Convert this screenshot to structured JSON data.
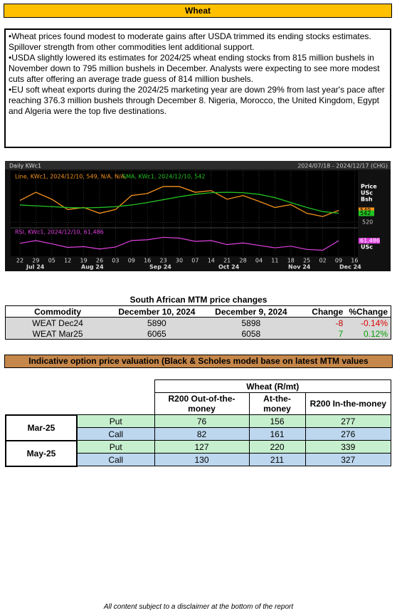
{
  "header": {
    "title": "Wheat"
  },
  "commentary": [
    "•Wheat prices found modest to moderate gains after USDA trimmed its ending stocks estimates. Spillover strength from other commodities lent additional support.",
    "•USDA slightly lowered its estimates for 2024/25 wheat ending stocks from 815 million bushels in November down to 795 million bushels in December. Analysts were expecting to see more modest cuts after offering an average trade guess of 814 million bushels.",
    "•EU soft wheat exports during the 2024/25 marketing year are down 29% from last year's pace after reaching 376.3 million bushels through December 8. Nigeria, Morocco, the United Kingdom, Egypt and Algeria were the top five destinations."
  ],
  "chart_data": {
    "type": "line",
    "title": "Daily KWc1",
    "date_range": "2024/07/18 - 2024/12/17 (CHG)",
    "categories": [
      "22",
      "29",
      "05",
      "12",
      "19",
      "26",
      "03",
      "09",
      "16",
      "23",
      "30",
      "07",
      "14",
      "21",
      "28",
      "04",
      "11",
      "18",
      "25",
      "02",
      "09",
      "16"
    ],
    "months": [
      "Jul 24",
      "Aug 24",
      "Sep 24",
      "Oct 24",
      "Nov 24",
      "Dec 24"
    ],
    "series": [
      {
        "name": "Line, KWc1, 2024/12/10, 549, N/A, N/A,",
        "color": "#f7941d",
        "values": [
          573,
          593,
          576,
          551,
          556,
          542,
          551,
          585,
          590,
          607,
          607,
          593,
          597,
          576,
          585,
          571,
          556,
          563,
          542,
          534,
          549,
          null
        ]
      },
      {
        "name": "SMA, KWc1, 2024/12/10, 542",
        "color": "#22c322",
        "values": [
          562,
          560,
          558,
          556,
          555,
          556,
          558,
          562,
          568,
          575,
          582,
          588,
          592,
          593,
          592,
          588,
          580,
          568,
          556,
          546,
          542,
          null
        ]
      }
    ],
    "y_label": [
      "Price",
      "USc",
      "Bsh"
    ],
    "ylim": [
      510,
      645
    ],
    "yticks": [
      520
    ],
    "last_tags": [
      549,
      542
    ],
    "rsi": {
      "name": "RSI, KWc1, 2024/12/10, 61,486",
      "color": "#e040e0",
      "values": [
        55,
        62,
        54,
        45,
        47,
        41,
        46,
        62,
        64,
        70,
        68,
        60,
        62,
        52,
        56,
        50,
        44,
        48,
        40,
        38,
        61.486,
        null
      ],
      "ylim": [
        30,
        90
      ],
      "tag": {
        "value": 61.486,
        "label": "61,486"
      },
      "unit": "USc"
    }
  },
  "mtm": {
    "title": "South African MTM price changes",
    "columns": [
      "Commodity",
      "December 10, 2024",
      "December 9, 2024",
      "Change",
      "%Change"
    ],
    "rows": [
      [
        "WEAT Dec24",
        "5890",
        "5898",
        "-8",
        "-0.14%"
      ],
      [
        "WEAT Mar25",
        "6065",
        "6058",
        "7",
        "0.12%"
      ]
    ]
  },
  "options": {
    "banner": "Indicative option price valuation (Black & Scholes model base on latest MTM values",
    "group": "Wheat (R/mt)",
    "columns": [
      "R200 Out-of-the-money",
      "At-the-money",
      "R200 In-the-money"
    ],
    "blocks": [
      {
        "month": "Mar-25",
        "rows": [
          [
            "Put",
            "76",
            "156",
            "277"
          ],
          [
            "Call",
            "82",
            "161",
            "276"
          ]
        ]
      },
      {
        "month": "May-25",
        "rows": [
          [
            "Put",
            "127",
            "220",
            "339"
          ],
          [
            "Call",
            "130",
            "211",
            "327"
          ]
        ]
      }
    ]
  },
  "footer": "All content subject to a disclaimer at the bottom of the report"
}
